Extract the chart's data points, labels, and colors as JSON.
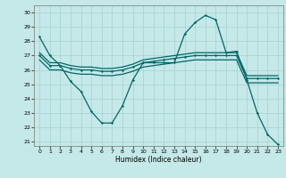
{
  "xlabel": "Humidex (Indice chaleur)",
  "xlim": [
    -0.5,
    23.5
  ],
  "ylim": [
    20.7,
    30.5
  ],
  "yticks": [
    21,
    22,
    23,
    24,
    25,
    26,
    27,
    28,
    29,
    30
  ],
  "xticks": [
    0,
    1,
    2,
    3,
    4,
    5,
    6,
    7,
    8,
    9,
    10,
    11,
    12,
    13,
    14,
    15,
    16,
    17,
    18,
    19,
    20,
    21,
    22,
    23
  ],
  "background_color": "#c5e8e8",
  "grid_color": "#a8d0d0",
  "line_color": "#006868",
  "line1_x": [
    0,
    1,
    2,
    3,
    4,
    5,
    6,
    7,
    8,
    9,
    10,
    11,
    12,
    13,
    14,
    15,
    16,
    17,
    18,
    19,
    20,
    21,
    22,
    23
  ],
  "line1_y": [
    28.3,
    27.0,
    26.3,
    25.2,
    24.5,
    23.1,
    22.3,
    22.3,
    23.5,
    25.3,
    26.5,
    26.5,
    26.5,
    26.5,
    28.5,
    29.3,
    29.8,
    29.5,
    27.2,
    27.3,
    25.3,
    23.0,
    21.5,
    20.8
  ],
  "line2_x": [
    0,
    1,
    2,
    3,
    4,
    5,
    6,
    7,
    8,
    9,
    10,
    11,
    12,
    13,
    14,
    15,
    16,
    17,
    18,
    19,
    20,
    21,
    22,
    23
  ],
  "line2_y": [
    27.0,
    26.3,
    26.3,
    26.1,
    26.0,
    26.0,
    25.9,
    25.9,
    26.0,
    26.2,
    26.5,
    26.6,
    26.7,
    26.8,
    26.9,
    27.0,
    27.0,
    27.0,
    27.0,
    27.0,
    25.4,
    25.4,
    25.4,
    25.4
  ],
  "line3_x": [
    0,
    1,
    2,
    3,
    4,
    5,
    6,
    7,
    8,
    9,
    10,
    11,
    12,
    13,
    14,
    15,
    16,
    17,
    18,
    19,
    20,
    21,
    22,
    23
  ],
  "line3_y": [
    26.7,
    26.0,
    26.0,
    25.8,
    25.7,
    25.7,
    25.6,
    25.6,
    25.7,
    25.9,
    26.2,
    26.3,
    26.4,
    26.5,
    26.6,
    26.7,
    26.7,
    26.7,
    26.7,
    26.7,
    25.1,
    25.1,
    25.1,
    25.1
  ],
  "line4_x": [
    0,
    1,
    2,
    3,
    4,
    5,
    6,
    7,
    8,
    9,
    10,
    11,
    12,
    13,
    14,
    15,
    16,
    17,
    18,
    19,
    20,
    21,
    22,
    23
  ],
  "line4_y": [
    27.2,
    26.5,
    26.5,
    26.3,
    26.2,
    26.2,
    26.1,
    26.1,
    26.2,
    26.4,
    26.7,
    26.8,
    26.9,
    27.0,
    27.1,
    27.2,
    27.2,
    27.2,
    27.2,
    27.2,
    25.6,
    25.6,
    25.6,
    25.6
  ]
}
